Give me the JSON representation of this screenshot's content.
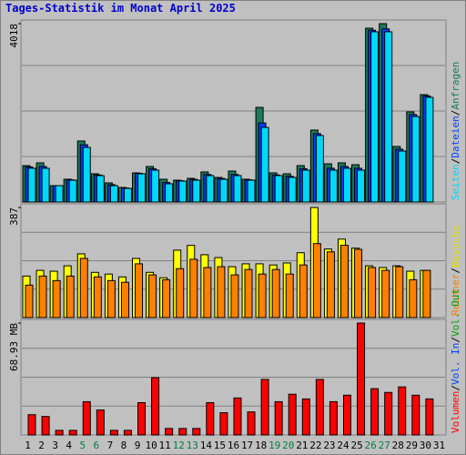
{
  "chart_data": {
    "type": "bar",
    "title": "Tages-Statistik im Monat April 2025",
    "categories": [
      "1",
      "2",
      "3",
      "4",
      "5",
      "6",
      "7",
      "8",
      "9",
      "10",
      "11",
      "12",
      "13",
      "14",
      "15",
      "16",
      "17",
      "18",
      "19",
      "20",
      "21",
      "22",
      "23",
      "24",
      "25",
      "26",
      "27",
      "28",
      "29",
      "30",
      "31"
    ],
    "category_colors": [
      "#000000",
      "#000000",
      "#000000",
      "#000000",
      "#008040",
      "#008040",
      "#000000",
      "#000000",
      "#000000",
      "#000000",
      "#000000",
      "#008040",
      "#008040",
      "#000000",
      "#000000",
      "#000000",
      "#000000",
      "#000000",
      "#008040",
      "#008040",
      "#000000",
      "#000000",
      "#000000",
      "#000000",
      "#000000",
      "#008040",
      "#008040",
      "#000000",
      "#000000",
      "#000000",
      "#000000"
    ],
    "separator": "/",
    "panels": [
      {
        "ylim": [
          0,
          4018
        ],
        "yticks": [
          4018
        ],
        "series": [
          {
            "name": "Seiten",
            "color": "#00d8f8",
            "values": [
              760,
              760,
              369,
              492,
              1230,
              595,
              369,
              308,
              636,
              718,
              410,
              472,
              492,
              595,
              513,
              595,
              492,
              1681,
              595,
              554,
              718,
              1497,
              718,
              760,
              718,
              3834,
              3834,
              1148,
              1927,
              2358,
              0
            ]
          },
          {
            "name": "Dateien",
            "color": "#0040ff",
            "values": [
              790,
              800,
              369,
              500,
              1290,
              610,
              390,
              315,
              646,
              750,
              440,
              480,
              510,
              620,
              530,
              620,
              500,
              1780,
              610,
              580,
              750,
              1540,
              760,
              800,
              760,
              3870,
              3900,
              1190,
              1970,
              2390,
              0
            ]
          },
          {
            "name": "Anfragen",
            "color": "#1a7a5a",
            "values": [
              820,
              882,
              369,
              513,
              1374,
              636,
              431,
              328,
              656,
              800,
              513,
              492,
              533,
              677,
              554,
              697,
              513,
              2132,
              656,
              636,
              820,
              1620,
              861,
              882,
              841,
              3916,
              4018,
              1251,
              2030,
              2419,
              0
            ]
          }
        ]
      },
      {
        "ylim": [
          0,
          387
        ],
        "yticks": [
          387
        ],
        "series": [
          {
            "name": "Rechner",
            "color": "#ff8000",
            "values": [
              114,
              146,
              130,
              146,
              208,
              143,
              130,
              124,
              189,
              150,
              133,
              172,
              205,
              176,
              179,
              150,
              169,
              153,
              169,
              153,
              185,
              260,
              231,
              254,
              240,
              176,
              166,
              179,
              133,
              166,
              0
            ]
          },
          {
            "name": "Besuche",
            "color": "#ffff00",
            "values": [
              146,
              166,
              163,
              182,
              224,
              159,
              153,
              143,
              208,
              159,
              140,
              237,
              254,
              221,
              211,
              179,
              189,
              189,
              185,
              192,
              228,
              387,
              241,
              276,
              244,
              182,
              176,
              182,
              163,
              166,
              0
            ]
          }
        ]
      },
      {
        "ylim": [
          0,
          68.93
        ],
        "yticks": [
          {
            "value": 68.93,
            "label": "68.93 MB"
          }
        ],
        "series": [
          {
            "name": "Volumen",
            "color": "#ff0000",
            "values": [
              12.5,
              11.4,
              2.85,
              2.85,
              20.5,
              15.4,
              2.85,
              2.85,
              19.9,
              35.3,
              4.0,
              4.0,
              4.0,
              19.9,
              13.7,
              22.8,
              14.2,
              34.2,
              20.5,
              25.1,
              22.2,
              34.2,
              20.5,
              24.5,
              68.93,
              28.5,
              26.2,
              29.6,
              24.5,
              22.2,
              0
            ]
          },
          {
            "name": "Vol. In",
            "color": "#0040ff",
            "values": [
              0,
              0,
              0,
              0,
              0,
              0,
              0,
              0,
              0,
              0,
              0,
              0,
              0,
              0,
              0,
              0,
              0,
              0,
              0,
              0,
              0,
              0,
              0,
              0,
              0,
              0,
              0,
              0,
              0,
              0,
              0
            ]
          },
          {
            "name": "Vol. Out",
            "color": "#00a000",
            "values": [
              0,
              0,
              0,
              0,
              0,
              0,
              0,
              0,
              0,
              0,
              0,
              0,
              0,
              0,
              0,
              0,
              0,
              0,
              0,
              0,
              0,
              0,
              0,
              0,
              0,
              0,
              0,
              0,
              0,
              0,
              0
            ]
          }
        ]
      }
    ]
  }
}
